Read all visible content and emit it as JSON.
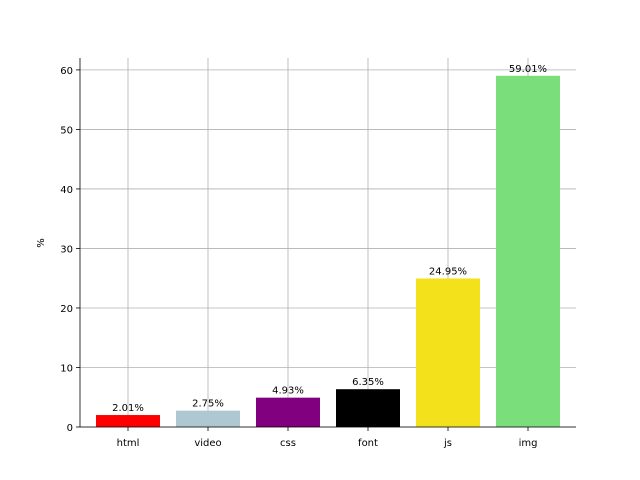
{
  "chart_data": {
    "type": "bar",
    "categories": [
      "html",
      "video",
      "css",
      "font",
      "js",
      "img"
    ],
    "values": [
      2.01,
      2.75,
      4.93,
      6.35,
      24.95,
      59.01
    ],
    "data_labels": [
      "2.01%",
      "2.75%",
      "4.93%",
      "6.35%",
      "24.95%",
      "59.01%"
    ],
    "colors": [
      "#ff0000",
      "#aec7d0",
      "#800080",
      "#000000",
      "#f2e11b",
      "#7ade7a"
    ],
    "title": "",
    "xlabel": "",
    "ylabel": "%",
    "ylim": [
      0,
      62
    ],
    "yticks": [
      0,
      10,
      20,
      30,
      40,
      50,
      60
    ],
    "grid": true,
    "legend": "none"
  }
}
